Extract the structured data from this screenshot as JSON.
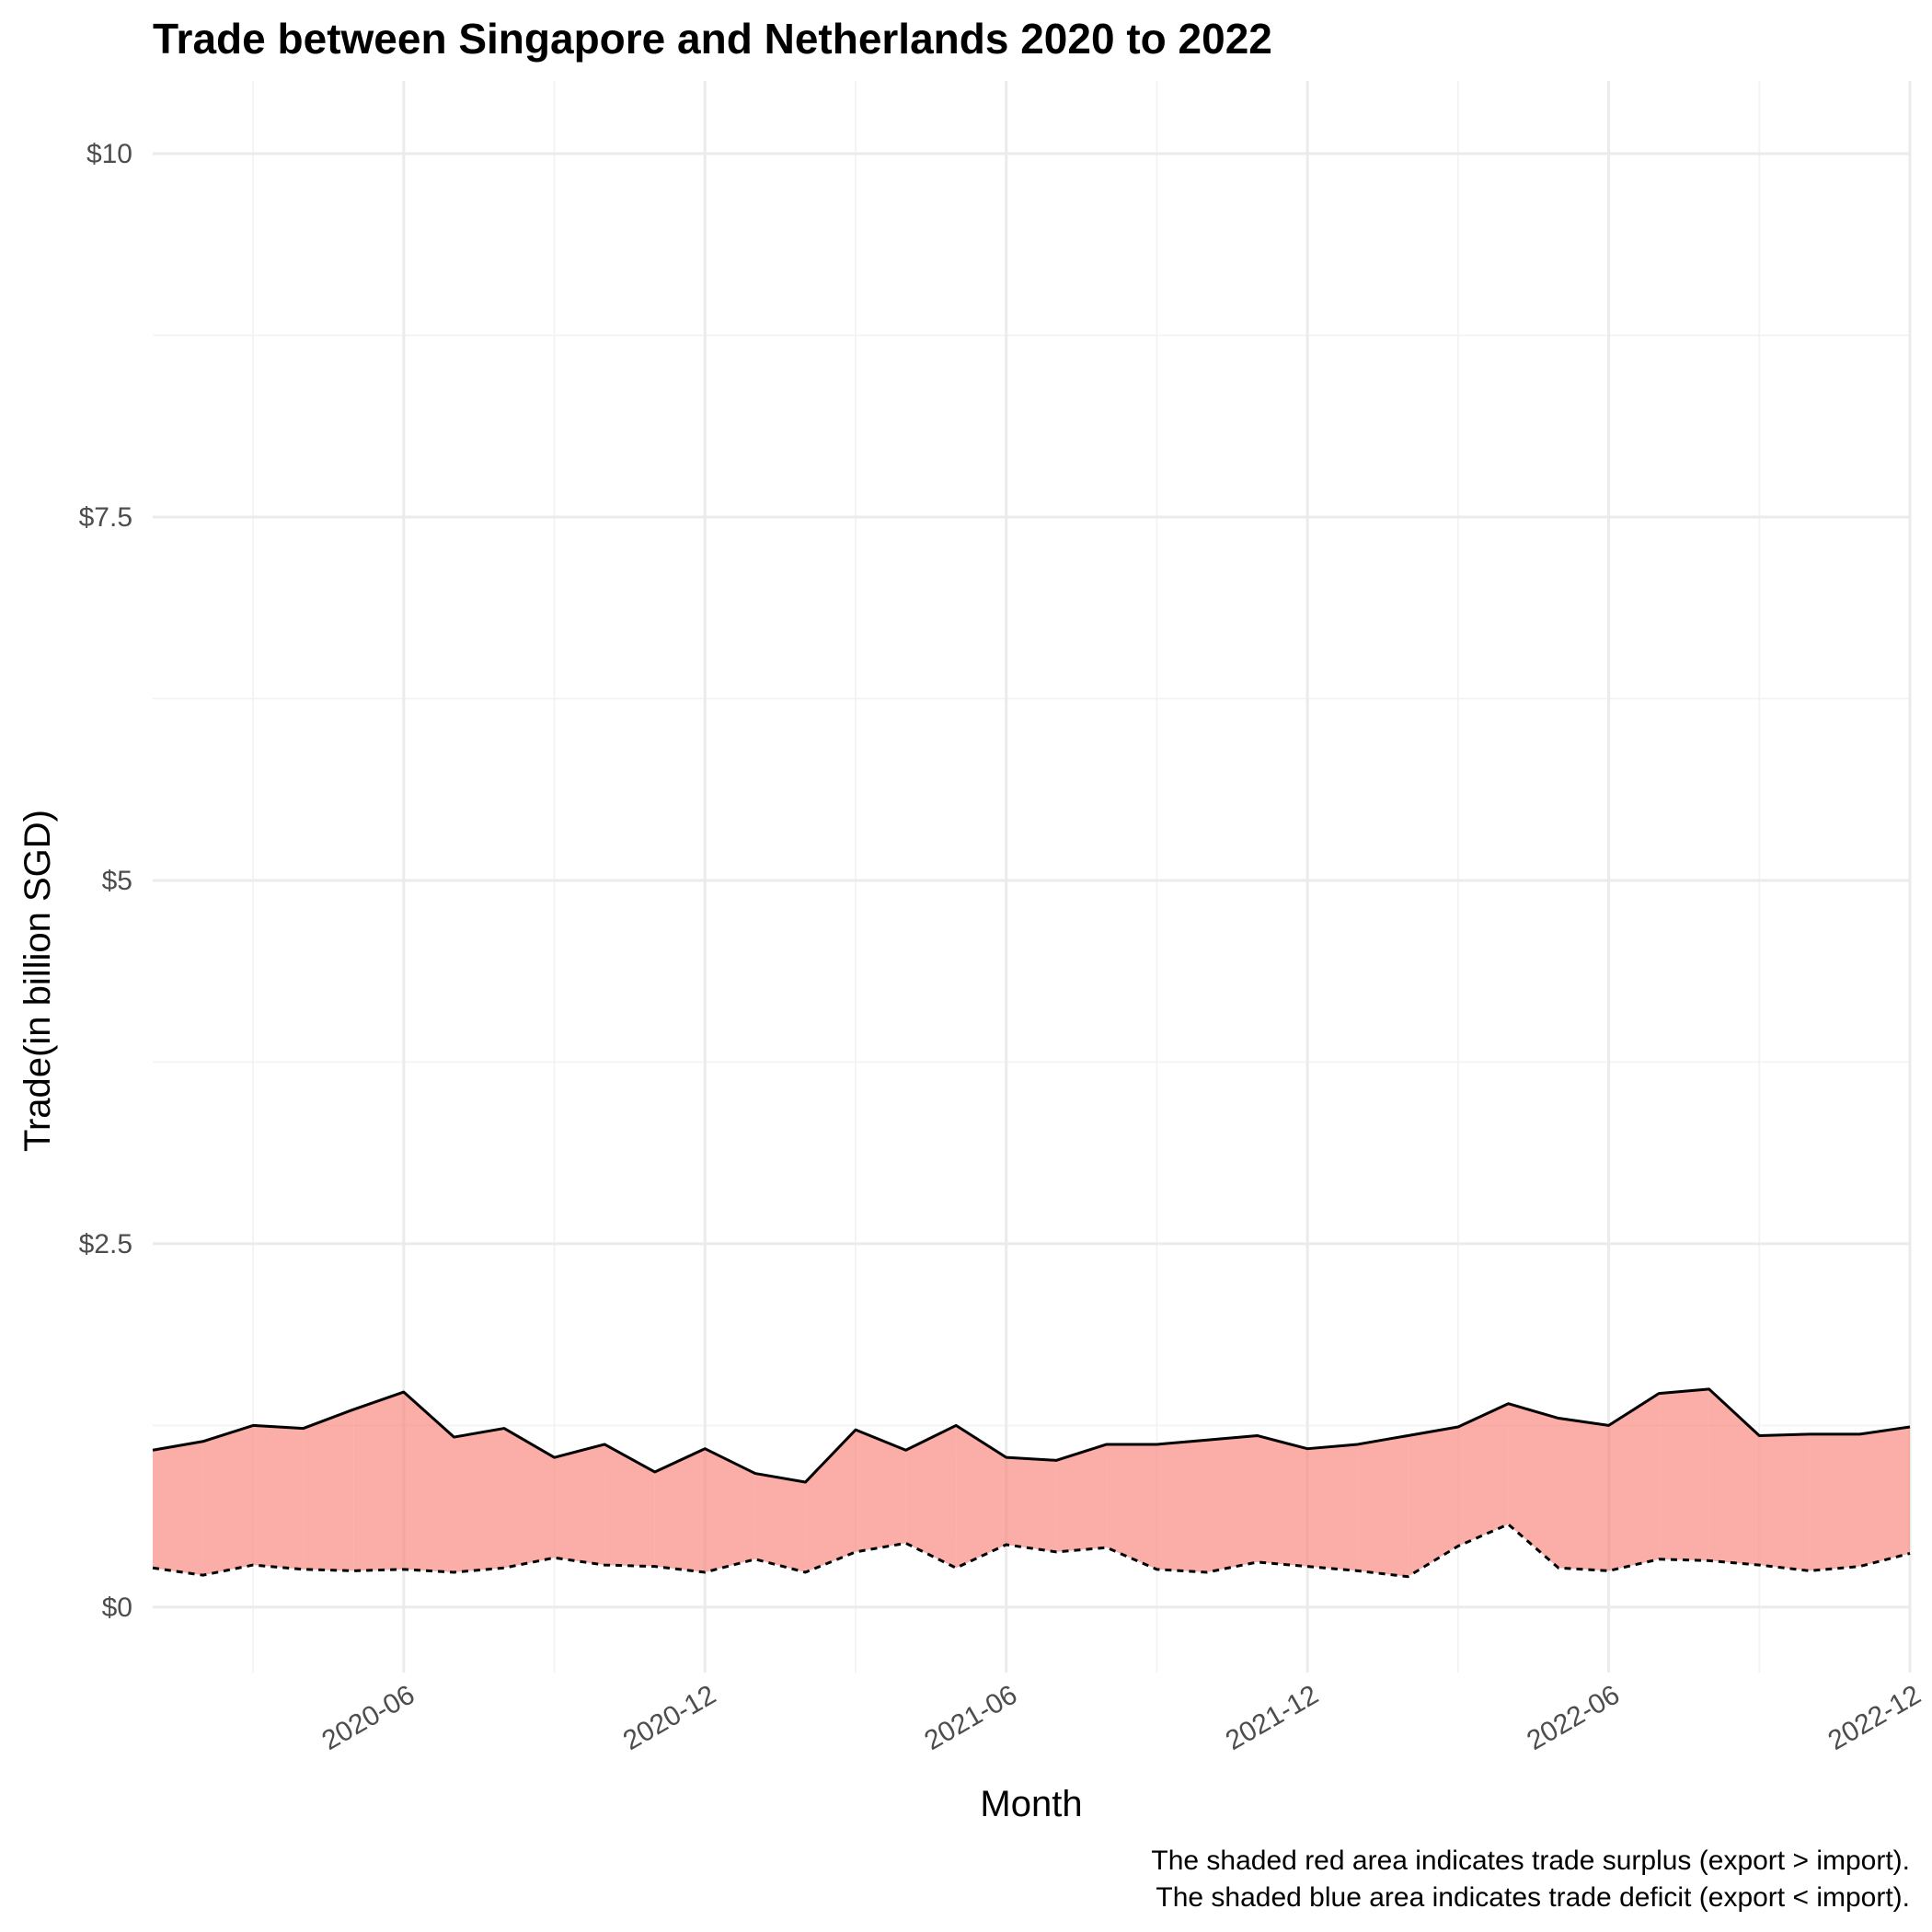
{
  "chart_data": {
    "type": "area",
    "title": "Trade between Singapore and Netherlands  2020 to 2022",
    "xlabel": "Month",
    "ylabel": "Trade(in billion SGD)",
    "ylim": [
      -0.45,
      10.5
    ],
    "yticks": [
      {
        "value": 0,
        "label": "$0"
      },
      {
        "value": 2.5,
        "label": "$2.5"
      },
      {
        "value": 5,
        "label": "$5"
      },
      {
        "value": 7.5,
        "label": "$7.5"
      },
      {
        "value": 10,
        "label": "$10"
      }
    ],
    "yminor": [
      1.25,
      3.75,
      6.25,
      8.75
    ],
    "xlim": [
      "2020-01",
      "2022-12"
    ],
    "xticks": [
      {
        "value": "2020-06",
        "label": "2020-06"
      },
      {
        "value": "2020-12",
        "label": "2020-12"
      },
      {
        "value": "2021-06",
        "label": "2021-06"
      },
      {
        "value": "2021-12",
        "label": "2021-12"
      },
      {
        "value": "2022-06",
        "label": "2022-06"
      },
      {
        "value": "2022-12",
        "label": "2022-12"
      }
    ],
    "xminor": [
      "2020-03",
      "2020-09",
      "2021-03",
      "2021-09",
      "2022-03",
      "2022-09"
    ],
    "x": [
      "2020-01",
      "2020-02",
      "2020-03",
      "2020-04",
      "2020-05",
      "2020-06",
      "2020-07",
      "2020-08",
      "2020-09",
      "2020-10",
      "2020-11",
      "2020-12",
      "2021-01",
      "2021-02",
      "2021-03",
      "2021-04",
      "2021-05",
      "2021-06",
      "2021-07",
      "2021-08",
      "2021-09",
      "2021-10",
      "2021-11",
      "2021-12",
      "2022-01",
      "2022-02",
      "2022-03",
      "2022-04",
      "2022-05",
      "2022-06",
      "2022-07",
      "2022-08",
      "2022-09",
      "2022-10",
      "2022-11",
      "2022-12"
    ],
    "series": [
      {
        "line": "solid",
        "values": [
          1.08,
          1.14,
          1.25,
          1.23,
          1.36,
          1.48,
          1.17,
          1.23,
          1.03,
          1.12,
          0.93,
          1.09,
          0.92,
          0.86,
          1.22,
          1.08,
          1.25,
          1.03,
          1.01,
          1.12,
          1.12,
          1.15,
          1.18,
          1.09,
          1.12,
          1.18,
          1.24,
          1.4,
          1.3,
          1.25,
          1.47,
          1.5,
          1.18,
          1.19,
          1.19,
          1.24
        ]
      },
      {
        "line": "dashed",
        "values": [
          0.27,
          0.22,
          0.29,
          0.26,
          0.25,
          0.26,
          0.24,
          0.27,
          0.34,
          0.29,
          0.28,
          0.24,
          0.33,
          0.24,
          0.38,
          0.44,
          0.27,
          0.43,
          0.38,
          0.41,
          0.26,
          0.24,
          0.31,
          0.28,
          0.25,
          0.21,
          0.42,
          0.57,
          0.27,
          0.25,
          0.33,
          0.32,
          0.29,
          0.25,
          0.28,
          0.37
        ]
      }
    ],
    "surplus_color": "#f8766d",
    "deficit_color": "#00bfc4",
    "grid": true,
    "caption": [
      "The shaded red area indicates trade surplus (export > import).",
      "The shaded blue area indicates trade deficit (export < import)."
    ]
  }
}
